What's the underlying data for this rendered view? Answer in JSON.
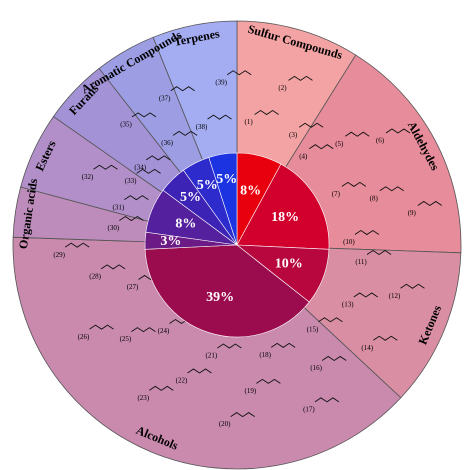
{
  "chart_data": {
    "type": "pie",
    "categories": [
      "Sulfur Compounds",
      "Aldehydes",
      "Ketones",
      "Alcohols",
      "Organic acids",
      "Esters",
      "Furans",
      "Aromatic Compounds",
      "Terpenes"
    ],
    "values": [
      8,
      18,
      10,
      39,
      3,
      8,
      5,
      5,
      5
    ],
    "value_labels": [
      "8%",
      "18%",
      "10%",
      "39%",
      "3%",
      "8%",
      "5%",
      "5%",
      "5%"
    ],
    "colors": [
      "#e8000f",
      "#d2002c",
      "#b8073f",
      "#9a0c4e",
      "#6c1a86",
      "#55209e",
      "#3d22b6",
      "#2d2bcc",
      "#1c33e2"
    ],
    "outer_colors": [
      "#f3a3a3",
      "#e78c9a",
      "#d98ea4",
      "#c98aae",
      "#bd8cbb",
      "#b28fc8",
      "#a392d6",
      "#9c9de2",
      "#a4acf2"
    ],
    "compounds": [
      [
        "(1)",
        "(2)",
        "(3)"
      ],
      [
        "(4)",
        "(5)",
        "(6)",
        "(7)",
        "(8)",
        "(9)",
        "(10)"
      ],
      [
        "(11)",
        "(12)",
        "(13)",
        "(14)"
      ],
      [
        "(15)",
        "(16)",
        "(17)",
        "(18)",
        "(19)",
        "(20)",
        "(21)",
        "(22)",
        "(23)",
        "(24)",
        "(25)",
        "(26)",
        "(27)",
        "(28)",
        "(29)"
      ],
      [
        "(30)"
      ],
      [
        "(31)",
        "(32)",
        "(33)"
      ],
      [
        "(34)",
        "(35)"
      ],
      [
        "(36)",
        "(37)"
      ],
      [
        "(38)",
        "(39)"
      ]
    ]
  }
}
